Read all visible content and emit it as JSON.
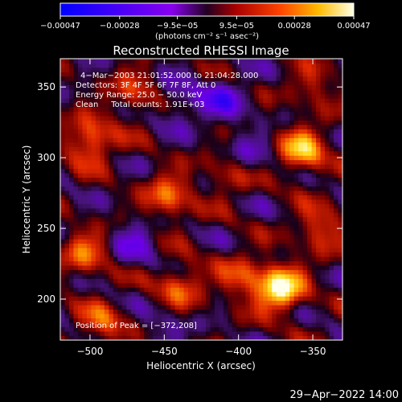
{
  "chart_data": {
    "type": "heatmap",
    "title": "Reconstructed RHESSI Image",
    "xlabel": "Heliocentric X (arcsec)",
    "ylabel": "Heliocentric Y (arcsec)",
    "xlim": [
      -520,
      -330
    ],
    "ylim": [
      171,
      370
    ],
    "x_ticks": [
      -500,
      -450,
      -400,
      -350
    ],
    "x_tick_labels": [
      "−500",
      "−450",
      "−400",
      "−350"
    ],
    "y_ticks": [
      200,
      250,
      300,
      350
    ],
    "y_tick_labels": [
      "200",
      "250",
      "300",
      "350"
    ],
    "colorbar": {
      "range": [
        -0.00047,
        0.00047
      ],
      "tick_values": [
        -0.00047,
        -0.00028,
        -9.5e-05,
        9.5e-05,
        0.00028,
        0.00047
      ],
      "tick_labels": [
        "−0.00047",
        "−0.00028",
        "−9.5e−05",
        "9.5e−05",
        "0.00028",
        "0.00047"
      ],
      "units": "(photons cm⁻² s⁻¹ asec⁻²)"
    },
    "annotations": [
      "4−Mar−2003 21:01:52.000 to 21:04:28.000",
      "Detectors: 3F 4F 5F 6F 7F 8F, Att 0",
      "Energy Range: 25.0 − 50.0 keV",
      "Clean     Total counts: 1.91E+03",
      "Position of Peak = [−372,208]"
    ],
    "peak": {
      "x": -372,
      "y": 208
    },
    "bright_sources": [
      {
        "x": -372,
        "y": 208,
        "intensity": 1.0
      },
      {
        "x": -357,
        "y": 305,
        "intensity": 0.72
      },
      {
        "x": -500,
        "y": 312,
        "intensity": 0.62
      },
      {
        "x": -447,
        "y": 272,
        "intensity": 0.55
      },
      {
        "x": -440,
        "y": 210,
        "intensity": 0.48
      },
      {
        "x": -503,
        "y": 232,
        "intensity": 0.5
      },
      {
        "x": -492,
        "y": 182,
        "intensity": 0.45
      },
      {
        "x": -398,
        "y": 215,
        "intensity": 0.42
      },
      {
        "x": -405,
        "y": 290,
        "intensity": 0.4
      },
      {
        "x": -345,
        "y": 250,
        "intensity": 0.45
      },
      {
        "x": -470,
        "y": 345,
        "intensity": 0.38
      },
      {
        "x": -350,
        "y": 350,
        "intensity": 0.3
      }
    ],
    "dark_regions": [
      {
        "x": -410,
        "y": 340,
        "intensity": -0.45
      },
      {
        "x": -395,
        "y": 300,
        "intensity": -0.35
      },
      {
        "x": -470,
        "y": 240,
        "intensity": -0.35
      },
      {
        "x": -440,
        "y": 340,
        "intensity": -0.3
      },
      {
        "x": -450,
        "y": 180,
        "intensity": -0.2
      }
    ],
    "grid": false
  },
  "footer": {
    "timestamp": "29−Apr−2022 14:00"
  }
}
